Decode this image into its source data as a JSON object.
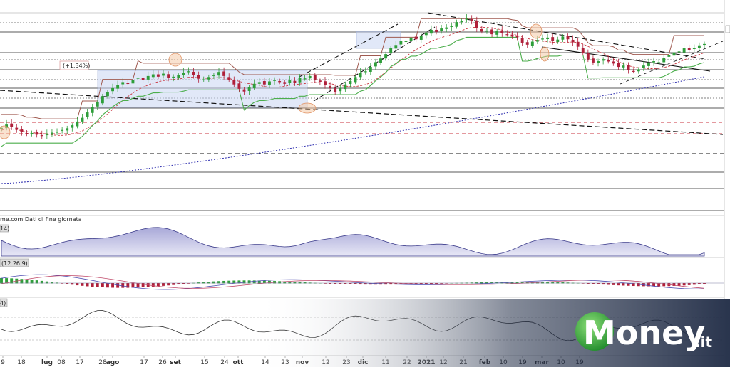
{
  "chart_data": {
    "type": "candlestick",
    "source_note": "me.com  Dati di fine giornata",
    "annotation": "(+1,34%)",
    "panels": {
      "volume_tag": "14)",
      "macd_tag": "(12 26 9)",
      "rsi_tag": "4)"
    },
    "x_ticks": [
      "9",
      "18",
      "lug",
      "08",
      "17",
      "28",
      "ago",
      "17",
      "26",
      "set",
      "15",
      "24",
      "ott",
      "14",
      "23",
      "nov",
      "12",
      "23",
      "dic",
      "11",
      "22",
      "2021",
      "12",
      "21",
      "feb",
      "10",
      "19",
      "mar",
      "10",
      "19"
    ],
    "price_series": [
      43,
      44,
      43.2,
      42.5,
      41.8,
      41.2,
      41.5,
      41,
      40.7,
      41.3,
      41.6,
      41.9,
      42.4,
      42.9,
      43.8,
      44.9,
      46,
      47.6,
      49.2,
      50.6,
      52.4,
      53.6,
      54.8,
      55.8,
      56.6,
      56.2,
      57.3,
      57.9,
      57.2,
      58.4,
      58.9,
      58.2,
      59.1,
      57.8,
      58.2,
      58.6,
      59.4,
      59.8,
      58.6,
      57.6,
      57.4,
      58.1,
      58.7,
      59.6,
      58.4,
      57.3,
      55.9,
      54.6,
      53.8,
      55.1,
      56.1,
      56.6,
      55.9,
      56.8,
      57.2,
      56.6,
      56.1,
      57.1,
      56.4,
      57.9,
      57.7,
      58.4,
      57.2,
      56.7,
      55.7,
      54.8,
      53.6,
      54.7,
      55.9,
      56.9,
      58.1,
      59.4,
      59.8,
      61.1,
      62.5,
      63.6,
      64.9,
      66.7,
      67.6,
      68.8,
      68.9,
      69.8,
      69.3,
      70.4,
      71.3,
      72.1,
      71.5,
      72.5,
      72.8,
      73.3,
      74.4,
      74.8,
      75.4,
      74.7,
      72.6,
      71.6,
      71.9,
      70.8,
      71.7,
      71.1,
      70.7,
      70.1,
      69.9,
      68.3,
      67.7,
      68.6,
      69.1,
      69.5,
      69.8,
      68.8,
      69.2,
      70.1,
      69.3,
      68.4,
      67.1,
      65.3,
      63.3,
      62.4,
      62.8,
      63.4,
      62.7,
      62.1,
      61.1,
      61.5,
      60.2,
      59.8,
      60.4,
      61.5,
      62.3,
      62.8,
      62.5,
      63.8,
      64.6,
      65.4,
      65.7,
      66.6,
      66.1,
      66.8,
      67.5,
      67.9
    ],
    "series": [
      {
        "name": "",
        "values": [
          43,
          44,
          43.2,
          42.5,
          41.8,
          41.2,
          41.5,
          41,
          40.7,
          41.3,
          41.6,
          41.9,
          42.4,
          42.9,
          43.8,
          44.9,
          46,
          47.6,
          49.2,
          50.6,
          52.4,
          53.6,
          54.8,
          55.8,
          56.6,
          56.2,
          57.3,
          57.9,
          57.2,
          58.4,
          58.9,
          58.2,
          59.1,
          57.8,
          58.2,
          58.6,
          59.4,
          59.8,
          58.6,
          57.6,
          57.4,
          58.1,
          58.7,
          59.6,
          58.4,
          57.3,
          55.9,
          54.6,
          53.8,
          55.1,
          56.1,
          56.6,
          55.9,
          56.8,
          57.2,
          56.6,
          56.1,
          57.1,
          56.4,
          57.9,
          57.7,
          58.4,
          57.2,
          56.7,
          55.7,
          54.8,
          53.6,
          54.7,
          55.9,
          56.9,
          58.1,
          59.4,
          59.8,
          61.1,
          62.5,
          63.6,
          64.9,
          66.7,
          67.6,
          68.8,
          68.9,
          69.8,
          69.3,
          70.4,
          71.3,
          72.1,
          71.5,
          72.5,
          72.8,
          73.3,
          74.4,
          74.8,
          75.4,
          74.7,
          72.6,
          71.6,
          71.9,
          70.8,
          71.7,
          71.1,
          70.7,
          70.1,
          69.9,
          68.3,
          67.7,
          68.6,
          69.1,
          69.5,
          69.8,
          68.8,
          69.2,
          70.1,
          69.3,
          68.4,
          67.1,
          65.3,
          63.3,
          62.4,
          62.8,
          63.4,
          62.7,
          62.1,
          61.1,
          61.5,
          60.2,
          59.8,
          60.4,
          61.5,
          62.3,
          62.8,
          62.5,
          63.8,
          64.6,
          65.4,
          65.7,
          66.6,
          66.1,
          66.8,
          67.5,
          67.9
        ]
      }
    ],
    "ylim": [
      32,
      78
    ],
    "colors": {
      "up": "#2e9e3a",
      "down": "#b0203a",
      "trend": "#111111",
      "support_red": "#c8323c",
      "ma_blue": "#3c3cb4",
      "green_stop": "#4cae4c",
      "brown_stop": "#a05a50",
      "box_fill": "#c9d6f2",
      "footer_bg": "#1e2a44",
      "logo_green": "#3fb53f"
    },
    "brand": {
      "word": "Money",
      "suffix": ".it"
    }
  }
}
